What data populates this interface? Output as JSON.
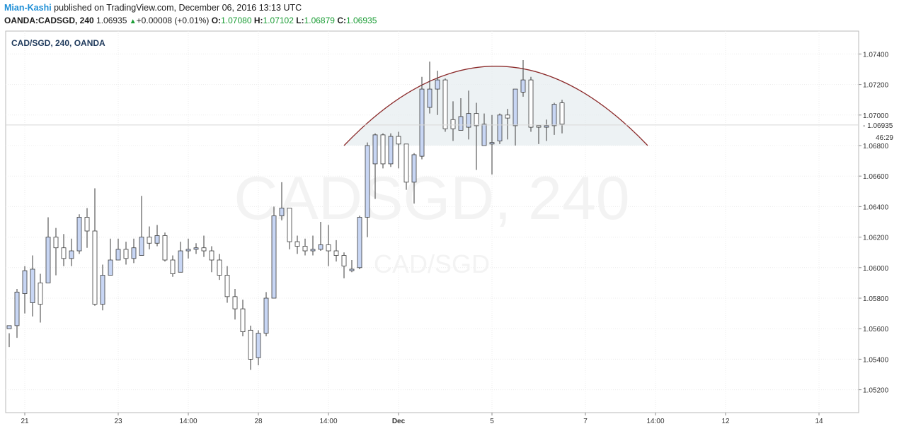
{
  "header": {
    "author": "Mian-Kashi",
    "published_text": "published on TradingView.com, December 06, 2016 13:13 UTC",
    "symbol": "OANDA:CADSGD, 240",
    "last": "1.06935",
    "change_arrow": "▲",
    "change": "+0.00008 (+0.01%)",
    "o_label": "O:",
    "o_value": "1.07080",
    "h_label": "H:",
    "h_value": "1.07102",
    "l_label": "L:",
    "l_value": "1.06879",
    "c_label": "C:",
    "c_value": "1.06935"
  },
  "chart_data": {
    "type": "candlestick",
    "title": "CAD/SGD, 240, OANDA",
    "watermark_main": "CADSGD, 240",
    "watermark_sub": "CAD/SGD",
    "ylim": [
      1.0505,
      1.0755
    ],
    "y_ticks": [
      1.052,
      1.054,
      1.056,
      1.058,
      1.06,
      1.062,
      1.064,
      1.066,
      1.068,
      1.07,
      1.072,
      1.074
    ],
    "y_tick_labels": [
      "1.05200",
      "1.05400",
      "1.05600",
      "1.05800",
      "1.06000",
      "1.06200",
      "1.06400",
      "1.06600",
      "1.06800",
      "1.07000",
      "1.07200",
      "1.07400"
    ],
    "last_price": 1.06935,
    "last_price_label": "1.06935",
    "countdown": "46:29",
    "x_ticks": [
      {
        "bar": 2,
        "label": "21",
        "bold": false
      },
      {
        "bar": 14,
        "label": "23",
        "bold": false
      },
      {
        "bar": 23,
        "label": "14:00",
        "bold": false
      },
      {
        "bar": 32,
        "label": "28",
        "bold": false
      },
      {
        "bar": 41,
        "label": "14:00",
        "bold": false
      },
      {
        "bar": 50,
        "label": "Dec",
        "bold": true
      },
      {
        "bar": 62,
        "label": "5",
        "bold": false
      },
      {
        "bar": 74,
        "label": "7",
        "bold": false
      },
      {
        "bar": 83,
        "label": "14:00",
        "bold": false
      },
      {
        "bar": 92,
        "label": "12",
        "bold": false
      },
      {
        "bar": 104,
        "label": "14",
        "bold": false
      }
    ],
    "candles": [
      [
        1.056,
        1.0562,
        1.0557,
        1.0548
      ],
      [
        1.0562,
        1.0584,
        1.0586,
        1.0554
      ],
      [
        1.0583,
        1.0598,
        1.0601,
        1.057
      ],
      [
        1.0577,
        1.0599,
        1.0608,
        1.0568
      ],
      [
        1.059,
        1.0576,
        1.0596,
        1.0564
      ],
      [
        1.059,
        1.062,
        1.0633,
        1.059
      ],
      [
        1.062,
        1.0613,
        1.0626,
        1.0595
      ],
      [
        1.0613,
        1.0606,
        1.0622,
        1.0601
      ],
      [
        1.0606,
        1.0611,
        1.0619,
        1.0601
      ],
      [
        1.0611,
        1.0633,
        1.0635,
        1.0609
      ],
      [
        1.0633,
        1.0624,
        1.0639,
        1.0613
      ],
      [
        1.0624,
        1.0576,
        1.0652,
        1.0575
      ],
      [
        1.0576,
        1.0595,
        1.0602,
        1.0572
      ],
      [
        1.0595,
        1.0605,
        1.0619,
        1.06
      ],
      [
        1.0605,
        1.0612,
        1.0619,
        1.0606
      ],
      [
        1.0612,
        1.0606,
        1.0617,
        1.0602
      ],
      [
        1.0606,
        1.0613,
        1.0619,
        1.0603
      ],
      [
        1.0608,
        1.062,
        1.0647,
        1.0608
      ],
      [
        1.062,
        1.0616,
        1.0627,
        1.0612
      ],
      [
        1.0616,
        1.0621,
        1.0628,
        1.0614
      ],
      [
        1.0621,
        1.0605,
        1.0623,
        1.0604
      ],
      [
        1.0605,
        1.0596,
        1.0608,
        1.0594
      ],
      [
        1.0597,
        1.0611,
        1.0617,
        1.06
      ],
      [
        1.0611,
        1.0612,
        1.0619,
        1.0606
      ],
      [
        1.0612,
        1.0613,
        1.0616,
        1.0609
      ],
      [
        1.0613,
        1.0611,
        1.0621,
        1.0607
      ],
      [
        1.0611,
        1.0605,
        1.0614,
        1.0597
      ],
      [
        1.0605,
        1.0595,
        1.0609,
        1.0592
      ],
      [
        1.0595,
        1.0581,
        1.0601,
        1.0577
      ],
      [
        1.0581,
        1.0573,
        1.0586,
        1.0566
      ],
      [
        1.0573,
        1.0558,
        1.0579,
        1.0555
      ],
      [
        1.0559,
        1.054,
        1.0562,
        1.0533
      ],
      [
        1.0541,
        1.0557,
        1.0559,
        1.0536
      ],
      [
        1.0557,
        1.058,
        1.0584,
        1.0555
      ],
      [
        1.058,
        1.0634,
        1.064,
        1.058
      ],
      [
        1.0634,
        1.0639,
        1.0656,
        1.0631
      ],
      [
        1.0639,
        1.0617,
        1.0639,
        1.0612
      ],
      [
        1.0617,
        1.0614,
        1.0621,
        1.0609
      ],
      [
        1.0614,
        1.0611,
        1.0619,
        1.0608
      ],
      [
        1.0611,
        1.0612,
        1.0621,
        1.0608
      ],
      [
        1.0612,
        1.0615,
        1.063,
        1.0611
      ],
      [
        1.0615,
        1.0611,
        1.0628,
        1.0601
      ],
      [
        1.0611,
        1.0608,
        1.0618,
        1.0604
      ],
      [
        1.0608,
        1.0601,
        1.061,
        1.0593
      ],
      [
        1.0598,
        1.0599,
        1.0605,
        1.0597
      ],
      [
        1.06,
        1.0633,
        1.0634,
        1.0599
      ],
      [
        1.0633,
        1.068,
        1.0682,
        1.062
      ],
      [
        1.0668,
        1.0687,
        1.0688,
        1.0645
      ],
      [
        1.0687,
        1.0668,
        1.0688,
        1.0665
      ],
      [
        1.0668,
        1.0686,
        1.0688,
        1.0666
      ],
      [
        1.0686,
        1.0681,
        1.0689,
        1.0665
      ],
      [
        1.0681,
        1.0656,
        1.0681,
        1.0651
      ],
      [
        1.0656,
        1.0674,
        1.0675,
        1.0642
      ],
      [
        1.0673,
        1.0717,
        1.0725,
        1.0671
      ],
      [
        1.0705,
        1.0717,
        1.0735,
        1.0701
      ],
      [
        1.0717,
        1.0723,
        1.0729,
        1.07
      ],
      [
        1.0723,
        1.0691,
        1.0724,
        1.0689
      ],
      [
        1.0697,
        1.0691,
        1.0709,
        1.0683
      ],
      [
        1.069,
        1.0699,
        1.0711,
        1.0691
      ],
      [
        1.0692,
        1.0701,
        1.0716,
        1.0684
      ],
      [
        1.0701,
        1.0693,
        1.0708,
        1.0664
      ],
      [
        1.068,
        1.0694,
        1.0701,
        1.068
      ],
      [
        1.0681,
        1.0682,
        1.07,
        1.0661
      ],
      [
        1.0683,
        1.07,
        1.0701,
        1.0681
      ],
      [
        1.07,
        1.0698,
        1.0704,
        1.0684
      ],
      [
        1.0693,
        1.0717,
        1.0717,
        1.068
      ],
      [
        1.0715,
        1.0723,
        1.0736,
        1.0712
      ],
      [
        1.0723,
        1.0692,
        1.0725,
        1.0689
      ],
      [
        1.0693,
        1.0692,
        1.0693,
        1.0681
      ],
      [
        1.0692,
        1.0693,
        1.0697,
        1.0683
      ],
      [
        1.0693,
        1.0707,
        1.0708,
        1.0687
      ],
      [
        1.0708,
        1.0694,
        1.071,
        1.0688
      ]
    ],
    "arc": {
      "x_start": 43.0,
      "x_end": 82.0,
      "y_base": 1.068,
      "y_peak": 1.0732
    },
    "colors": {
      "up": "#c8d6f4",
      "down": "#ffffff",
      "border": "#3a3a3a",
      "arc": "#8b2a2a",
      "arc_fill": "#e5edf0"
    }
  }
}
